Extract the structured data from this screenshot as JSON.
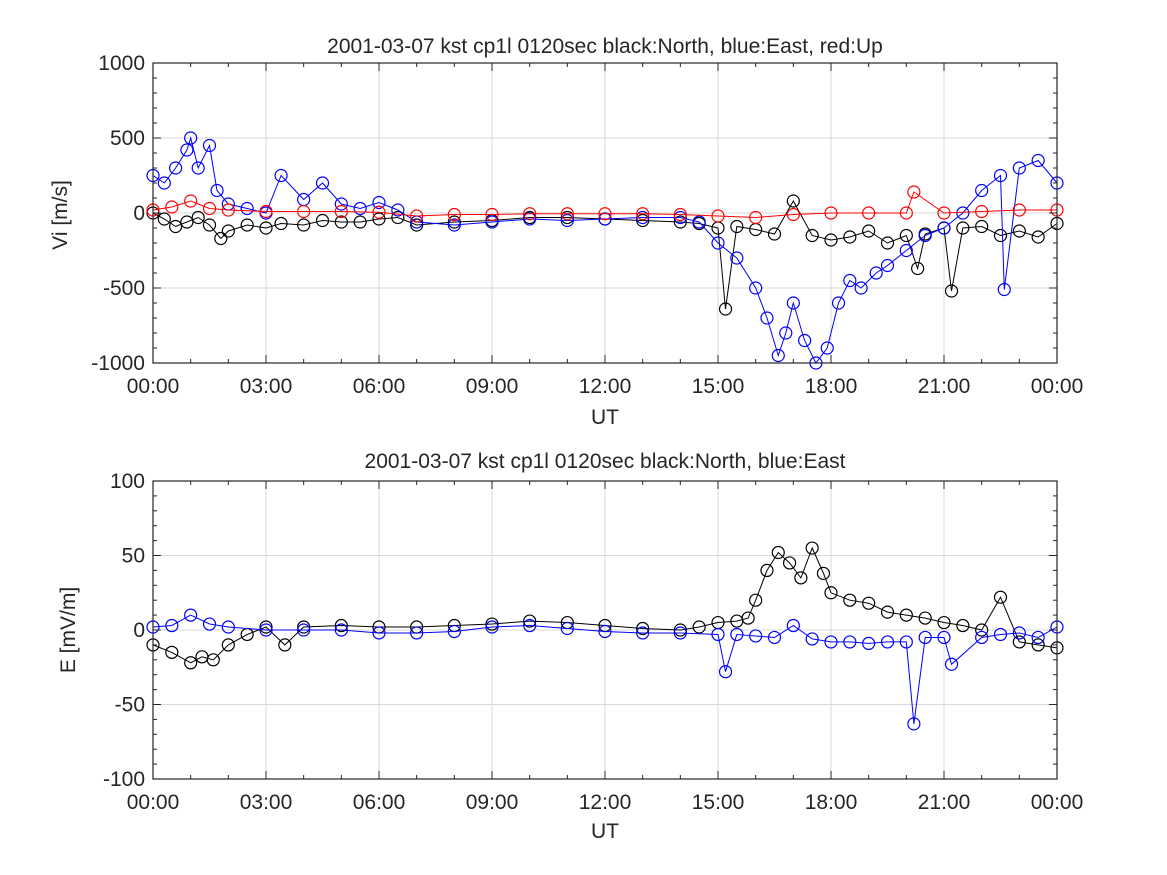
{
  "colors": {
    "north": "#000000",
    "east": "#0000ff",
    "up": "#ff0000",
    "grid": "#d9d9d9",
    "axis": "#262626",
    "background": "#ffffff"
  },
  "chart_data": [
    {
      "type": "scatter",
      "title": "2001-03-07 kst cp1l 0120sec black:North, blue:East, red:Up",
      "xlabel": "UT",
      "ylabel": "Vi [m/s]",
      "xlim": [
        0,
        24
      ],
      "ylim": [
        -1000,
        1000
      ],
      "xticks": [
        0,
        3,
        6,
        9,
        12,
        15,
        18,
        21,
        24
      ],
      "xtick_labels": [
        "00:00",
        "03:00",
        "06:00",
        "09:00",
        "12:00",
        "15:00",
        "18:00",
        "21:00",
        "00:00"
      ],
      "yticks": [
        -1000,
        -500,
        0,
        500,
        1000
      ],
      "ytick_labels": [
        "-1000",
        "-500",
        "0",
        "500",
        "1000"
      ],
      "grid": true,
      "marker": "open-circle",
      "series": [
        {
          "name": "North",
          "color": "#000000",
          "x": [
            0.0,
            0.3,
            0.6,
            0.9,
            1.2,
            1.5,
            1.8,
            2.0,
            2.5,
            3.0,
            3.4,
            4.0,
            4.5,
            5.0,
            5.5,
            6.0,
            6.5,
            7.0,
            8.0,
            9.0,
            10.0,
            11.0,
            12.0,
            13.0,
            14.0,
            14.5,
            15.0,
            15.2,
            15.5,
            16.0,
            16.5,
            17.0,
            17.5,
            18.0,
            18.5,
            19.0,
            19.5,
            20.0,
            20.3,
            20.5,
            21.0,
            21.2,
            21.5,
            22.0,
            22.5,
            23.0,
            23.5,
            24.0
          ],
          "y": [
            0,
            -40,
            -90,
            -60,
            -30,
            -80,
            -170,
            -120,
            -80,
            -100,
            -70,
            -80,
            -50,
            -60,
            -60,
            -40,
            -30,
            -80,
            -60,
            -50,
            -30,
            -30,
            -40,
            -50,
            -60,
            -70,
            -100,
            -640,
            -90,
            -110,
            -140,
            80,
            -150,
            -180,
            -160,
            -120,
            -200,
            -150,
            -370,
            -140,
            -100,
            -520,
            -100,
            -90,
            -150,
            -120,
            -160,
            -70
          ]
        },
        {
          "name": "East",
          "color": "#0000ff",
          "x": [
            0.0,
            0.3,
            0.6,
            0.9,
            1.0,
            1.2,
            1.5,
            1.7,
            2.0,
            2.5,
            3.0,
            3.4,
            4.0,
            4.5,
            5.0,
            5.5,
            6.0,
            6.5,
            7.0,
            8.0,
            9.0,
            10.0,
            11.0,
            12.0,
            13.0,
            14.0,
            14.5,
            15.0,
            15.5,
            16.0,
            16.3,
            16.6,
            16.8,
            17.0,
            17.3,
            17.6,
            17.9,
            18.2,
            18.5,
            18.8,
            19.2,
            19.5,
            20.0,
            20.5,
            21.0,
            21.5,
            22.0,
            22.5,
            22.6,
            23.0,
            23.5,
            24.0
          ],
          "y": [
            250,
            200,
            300,
            420,
            500,
            300,
            450,
            150,
            60,
            30,
            0,
            250,
            90,
            200,
            60,
            30,
            70,
            20,
            -60,
            -80,
            -60,
            -40,
            -50,
            -40,
            -30,
            -30,
            -60,
            -200,
            -300,
            -500,
            -700,
            -950,
            -800,
            -600,
            -850,
            -1000,
            -900,
            -600,
            -450,
            -500,
            -400,
            -350,
            -250,
            -150,
            -100,
            0,
            150,
            250,
            -510,
            300,
            350,
            200
          ]
        },
        {
          "name": "Up",
          "color": "#ff0000",
          "x": [
            0.0,
            0.5,
            1.0,
            1.5,
            2.0,
            3.0,
            4.0,
            5.0,
            6.0,
            7.0,
            8.0,
            9.0,
            10.0,
            11.0,
            12.0,
            13.0,
            14.0,
            15.0,
            16.0,
            17.0,
            18.0,
            19.0,
            20.0,
            20.2,
            21.0,
            22.0,
            23.0,
            24.0
          ],
          "y": [
            20,
            40,
            80,
            30,
            20,
            10,
            10,
            10,
            5,
            -20,
            -10,
            -10,
            -5,
            -5,
            -5,
            -5,
            -10,
            -20,
            -30,
            -10,
            0,
            0,
            0,
            140,
            0,
            10,
            20,
            20
          ]
        }
      ]
    },
    {
      "type": "scatter",
      "title": "2001-03-07 kst cp1l 0120sec black:North, blue:East",
      "xlabel": "UT",
      "ylabel": "E [mV/m]",
      "xlim": [
        0,
        24
      ],
      "ylim": [
        -100,
        100
      ],
      "xticks": [
        0,
        3,
        6,
        9,
        12,
        15,
        18,
        21,
        24
      ],
      "xtick_labels": [
        "00:00",
        "03:00",
        "06:00",
        "09:00",
        "12:00",
        "15:00",
        "18:00",
        "21:00",
        "00:00"
      ],
      "yticks": [
        -100,
        -50,
        0,
        50,
        100
      ],
      "ytick_labels": [
        "-100",
        "-50",
        "0",
        "50",
        "100"
      ],
      "grid": true,
      "marker": "open-circle",
      "series": [
        {
          "name": "North",
          "color": "#000000",
          "x": [
            0.0,
            0.5,
            1.0,
            1.3,
            1.6,
            2.0,
            2.5,
            3.0,
            3.5,
            4.0,
            5.0,
            6.0,
            7.0,
            8.0,
            9.0,
            10.0,
            11.0,
            12.0,
            13.0,
            14.0,
            14.5,
            15.0,
            15.5,
            15.8,
            16.0,
            16.3,
            16.6,
            16.9,
            17.2,
            17.5,
            17.8,
            18.0,
            18.5,
            19.0,
            19.5,
            20.0,
            20.5,
            21.0,
            21.5,
            22.0,
            22.5,
            23.0,
            23.5,
            24.0
          ],
          "y": [
            -10,
            -15,
            -22,
            -18,
            -20,
            -10,
            -3,
            2,
            -10,
            2,
            3,
            2,
            2,
            3,
            4,
            6,
            5,
            3,
            1,
            0,
            2,
            5,
            6,
            8,
            20,
            40,
            52,
            45,
            35,
            55,
            38,
            25,
            20,
            18,
            12,
            10,
            8,
            5,
            3,
            0,
            22,
            -8,
            -10,
            -12
          ]
        },
        {
          "name": "East",
          "color": "#0000ff",
          "x": [
            0.0,
            0.5,
            1.0,
            1.5,
            2.0,
            3.0,
            4.0,
            5.0,
            6.0,
            7.0,
            8.0,
            9.0,
            10.0,
            11.0,
            12.0,
            13.0,
            14.0,
            15.0,
            15.2,
            15.5,
            16.0,
            16.5,
            17.0,
            17.5,
            18.0,
            18.5,
            19.0,
            19.5,
            20.0,
            20.2,
            20.5,
            21.0,
            21.2,
            22.0,
            22.5,
            23.0,
            23.5,
            24.0
          ],
          "y": [
            2,
            3,
            10,
            4,
            2,
            0,
            0,
            0,
            -2,
            -2,
            -1,
            2,
            3,
            1,
            -1,
            -2,
            -2,
            -3,
            -28,
            -3,
            -4,
            -5,
            3,
            -6,
            -8,
            -8,
            -9,
            -8,
            -8,
            -63,
            -5,
            -5,
            -23,
            -5,
            -3,
            -2,
            -5,
            2
          ]
        }
      ]
    }
  ]
}
